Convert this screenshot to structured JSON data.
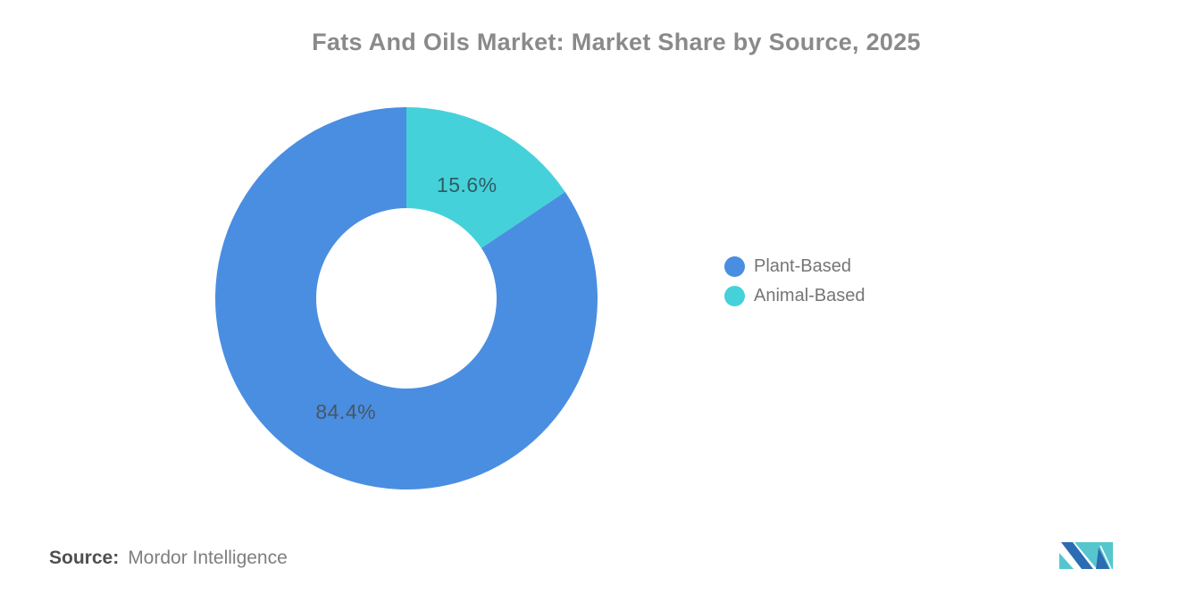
{
  "title": "Fats And Oils Market: Market Share by Source, 2025",
  "chart_data": {
    "type": "pie",
    "variant": "donut",
    "title": "Fats And Oils Market: Market Share by Source, 2025",
    "categories": [
      "Plant-Based",
      "Animal-Based"
    ],
    "values": [
      84.4,
      15.6
    ],
    "unit": "%",
    "data_labels": [
      "84.4%",
      "15.6%"
    ],
    "colors": [
      "#4A8EE1",
      "#45D1DA"
    ],
    "data_label_colors": [
      "#475663",
      "#2F5D63"
    ],
    "legend_position": "right-middle",
    "legend_entries": [
      "Plant-Based",
      "Animal-Based"
    ],
    "slice_order_clockwise_from_top": [
      "Animal-Based",
      "Plant-Based"
    ],
    "inner_radius_ratio": 0.47,
    "grid": false
  },
  "legend": {
    "items": [
      {
        "label": "Plant-Based",
        "color": "#4A8EE1"
      },
      {
        "label": "Animal-Based",
        "color": "#45D1DA"
      }
    ]
  },
  "source": {
    "label": "Source:",
    "value": "Mordor Intelligence"
  },
  "logo": {
    "name": "mordor-intelligence-logo",
    "teal": "#55C6CE",
    "blue": "#2B6CB3"
  }
}
